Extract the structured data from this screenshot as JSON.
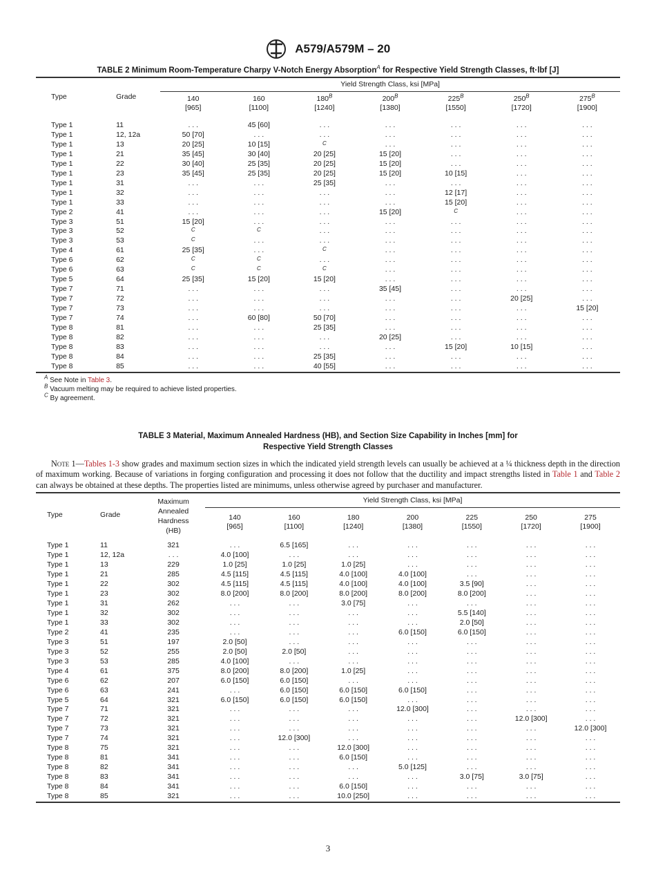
{
  "header": {
    "logo": "ASTM",
    "designation": "A579/A579M – 20"
  },
  "table2": {
    "title_pre": "TABLE 2 Minimum Room-Temperature Charpy V-Notch Energy Absorption",
    "title_fn": "A",
    "title_post": " for Respective Yield Strength Classes, ft·lbf [J]",
    "col_type": "Type",
    "col_grade": "Grade",
    "group": "Yield Strength Class, ksi [MPa]",
    "classes": [
      {
        "ksi": "140",
        "fn": "",
        "mpa": "[965]"
      },
      {
        "ksi": "160",
        "fn": "",
        "mpa": "[1100]"
      },
      {
        "ksi": "180",
        "fn": "B",
        "mpa": "[1240]"
      },
      {
        "ksi": "200",
        "fn": "B",
        "mpa": "[1380]"
      },
      {
        "ksi": "225",
        "fn": "B",
        "mpa": "[1550]"
      },
      {
        "ksi": "250",
        "fn": "B",
        "mpa": "[1720]"
      },
      {
        "ksi": "275",
        "fn": "B",
        "mpa": "[1900]"
      }
    ],
    "rows": [
      [
        "Type 1",
        "11",
        "...",
        "45 [60]",
        "...",
        "...",
        "...",
        "...",
        "..."
      ],
      [
        "Type 1",
        "12, 12a",
        "50 [70]",
        "...",
        "...",
        "...",
        "...",
        "...",
        "..."
      ],
      [
        "Type 1",
        "13",
        "20 [25]",
        "10 [15]",
        "C",
        "...",
        "...",
        "...",
        "..."
      ],
      [
        "Type 1",
        "21",
        "35 [45]",
        "30 [40]",
        "20 [25]",
        "15 [20]",
        "...",
        "...",
        "..."
      ],
      [
        "Type 1",
        "22",
        "30 [40]",
        "25 [35]",
        "20 [25]",
        "15 [20]",
        "...",
        "...",
        "..."
      ],
      [
        "Type 1",
        "23",
        "35 [45]",
        "25 [35]",
        "20 [25]",
        "15 [20]",
        "10 [15]",
        "...",
        "..."
      ],
      [
        "Type 1",
        "31",
        "...",
        "...",
        "25 [35]",
        "...",
        "...",
        "...",
        "..."
      ],
      [
        "Type 1",
        "32",
        "...",
        "...",
        "...",
        "...",
        "12 [17]",
        "...",
        "..."
      ],
      [
        "Type 1",
        "33",
        "...",
        "...",
        "...",
        "...",
        "15 [20]",
        "...",
        "..."
      ],
      [
        "Type 2",
        "41",
        "...",
        "...",
        "...",
        "15 [20]",
        "C",
        "...",
        "..."
      ],
      [
        "Type 3",
        "51",
        "15 [20]",
        "...",
        "...",
        "...",
        "...",
        "...",
        "..."
      ],
      [
        "Type 3",
        "52",
        "C",
        "C",
        "...",
        "...",
        "...",
        "...",
        "..."
      ],
      [
        "Type 3",
        "53",
        "C",
        "...",
        "...",
        "...",
        "...",
        "...",
        "..."
      ],
      [
        "Type 4",
        "61",
        "25 [35]",
        "...",
        "C",
        "...",
        "...",
        "...",
        "..."
      ],
      [
        "Type 6",
        "62",
        "C",
        "C",
        "...",
        "...",
        "...",
        "...",
        "..."
      ],
      [
        "Type 6",
        "63",
        "C",
        "C",
        "C",
        "...",
        "...",
        "...",
        "..."
      ],
      [
        "Type 5",
        "64",
        "25 [35]",
        "15 [20]",
        "15 [20]",
        "...",
        "...",
        "...",
        "..."
      ],
      [
        "Type 7",
        "71",
        "...",
        "...",
        "...",
        "35 [45]",
        "...",
        "...",
        "..."
      ],
      [
        "Type 7",
        "72",
        "...",
        "...",
        "...",
        "...",
        "...",
        "20 [25]",
        "..."
      ],
      [
        "Type 7",
        "73",
        "...",
        "...",
        "...",
        "...",
        "...",
        "...",
        "15 [20]"
      ],
      [
        "Type 7",
        "74",
        "...",
        "60 [80]",
        "50 [70]",
        "...",
        "...",
        "...",
        "..."
      ],
      [
        "Type 8",
        "81",
        "...",
        "...",
        "25 [35]",
        "...",
        "...",
        "...",
        "..."
      ],
      [
        "Type 8",
        "82",
        "...",
        "...",
        "...",
        "20 [25]",
        "...",
        "...",
        "..."
      ],
      [
        "Type 8",
        "83",
        "...",
        "...",
        "...",
        "...",
        "15 [20]",
        "10 [15]",
        "..."
      ],
      [
        "Type 8",
        "84",
        "...",
        "...",
        "25 [35]",
        "...",
        "...",
        "...",
        "..."
      ],
      [
        "Type 8",
        "85",
        "...",
        "...",
        "40 [55]",
        "...",
        "...",
        "...",
        "..."
      ]
    ],
    "footnotes": [
      {
        "mark": "A",
        "pre": " See Note in ",
        "link": "Table 3",
        "post": "."
      },
      {
        "mark": "B",
        "pre": " Vacuum melting may be required to achieve listed properties.",
        "link": "",
        "post": ""
      },
      {
        "mark": "C",
        "pre": " By agreement.",
        "link": "",
        "post": ""
      }
    ]
  },
  "table3": {
    "title_line1": "TABLE 3 Material, Maximum Annealed Hardness (HB), and Section Size Capability in Inches [mm] for",
    "title_line2": "Respective Yield Strength Classes",
    "note": {
      "label": "Note 1",
      "dash": "—",
      "link1": "Tables 1-3",
      "text1": " show grades and maximum section sizes in which the indicated yield strength levels can usually be achieved at a ¼ thickness depth in the direction of maximum working. Because of variations in forging configuration and processing it does not follow that the ductility and impact strengths listed in ",
      "link2": "Table 1",
      "text2": " and ",
      "link3": "Table 2",
      "text3": " can always be obtained at these depths. The properties listed are minimums, unless otherwise agreed by purchaser and manufacturer."
    },
    "col_type": "Type",
    "col_grade": "Grade",
    "col_hb": "Maximum Annealed Hardness (HB)",
    "group": "Yield Strength Class, ksi [MPa]",
    "classes": [
      {
        "ksi": "140",
        "mpa": "[965]"
      },
      {
        "ksi": "160",
        "mpa": "[1100]"
      },
      {
        "ksi": "180",
        "mpa": "[1240]"
      },
      {
        "ksi": "200",
        "mpa": "[1380]"
      },
      {
        "ksi": "225",
        "mpa": "[1550]"
      },
      {
        "ksi": "250",
        "mpa": "[1720]"
      },
      {
        "ksi": "275",
        "mpa": "[1900]"
      }
    ],
    "rows": [
      [
        "Type 1",
        "11",
        "321",
        "...",
        "6.5 [165]",
        "...",
        "...",
        "...",
        "...",
        "..."
      ],
      [
        "Type 1",
        "12, 12a",
        "...",
        "4.0 [100]",
        "...",
        "...",
        "...",
        "...",
        "...",
        "..."
      ],
      [
        "Type 1",
        "13",
        "229",
        "1.0 [25]",
        "1.0 [25]",
        "1.0 [25]",
        "...",
        "...",
        "...",
        "..."
      ],
      [
        "Type 1",
        "21",
        "285",
        "4.5 [115]",
        "4.5 [115]",
        "4.0 [100]",
        "4.0 [100]",
        "...",
        "...",
        "..."
      ],
      [
        "Type 1",
        "22",
        "302",
        "4.5 [115]",
        "4.5 [115]",
        "4.0 [100]",
        "4.0 [100]",
        "3.5 [90]",
        "...",
        "..."
      ],
      [
        "Type 1",
        "23",
        "302",
        "8.0 [200]",
        "8.0 [200]",
        "8.0 [200]",
        "8.0 [200]",
        "8.0 [200]",
        "...",
        "..."
      ],
      [
        "Type 1",
        "31",
        "262",
        "...",
        "...",
        "3.0 [75]",
        "...",
        "...",
        "...",
        "..."
      ],
      [
        "Type 1",
        "32",
        "302",
        "...",
        "...",
        "...",
        "...",
        "5.5 [140]",
        "...",
        "..."
      ],
      [
        "Type 1",
        "33",
        "302",
        "...",
        "...",
        "...",
        "...",
        "2.0 [50]",
        "...",
        "..."
      ],
      [
        "Type 2",
        "41",
        "235",
        "...",
        "...",
        "...",
        "6.0 [150]",
        "6.0 [150]",
        "...",
        "..."
      ],
      [
        "Type 3",
        "51",
        "197",
        "2.0 [50]",
        "...",
        "...",
        "...",
        "...",
        "...",
        "..."
      ],
      [
        "Type 3",
        "52",
        "255",
        "2.0 [50]",
        "2.0 [50]",
        "...",
        "...",
        "...",
        "...",
        "..."
      ],
      [
        "Type 3",
        "53",
        "285",
        "4.0 [100]",
        "...",
        "...",
        "...",
        "...",
        "...",
        "..."
      ],
      [
        "Type 4",
        "61",
        "375",
        "8.0 [200]",
        "8.0 [200]",
        "1.0 [25]",
        "...",
        "...",
        "...",
        "..."
      ],
      [
        "Type 6",
        "62",
        "207",
        "6.0 [150]",
        "6.0 [150]",
        "...",
        "...",
        "...",
        "...",
        "..."
      ],
      [
        "Type 6",
        "63",
        "241",
        "...",
        "6.0 [150]",
        "6.0 [150]",
        "6.0 [150]",
        "...",
        "...",
        "..."
      ],
      [
        "Type 5",
        "64",
        "321",
        "6.0 [150]",
        "6.0 [150]",
        "6.0 [150]",
        "...",
        "...",
        "...",
        "..."
      ],
      [
        "Type 7",
        "71",
        "321",
        "...",
        "...",
        "...",
        "12.0 [300]",
        "...",
        "...",
        "..."
      ],
      [
        "Type 7",
        "72",
        "321",
        "...",
        "...",
        "...",
        "...",
        "...",
        "12.0 [300]",
        "..."
      ],
      [
        "Type 7",
        "73",
        "321",
        "...",
        "...",
        "...",
        "...",
        "...",
        "...",
        "12.0 [300]"
      ],
      [
        "Type 7",
        "74",
        "321",
        "...",
        "12.0 [300]",
        "...",
        "...",
        "...",
        "...",
        "..."
      ],
      [
        "Type 8",
        "75",
        "321",
        "...",
        "...",
        "12.0 [300]",
        "...",
        "...",
        "...",
        "..."
      ],
      [
        "Type 8",
        "81",
        "341",
        "...",
        "...",
        "6.0 [150]",
        "...",
        "...",
        "...",
        "..."
      ],
      [
        "Type 8",
        "82",
        "341",
        "...",
        "...",
        "...",
        "5.0 [125]",
        "...",
        "...",
        "..."
      ],
      [
        "Type 8",
        "83",
        "341",
        "...",
        "...",
        "...",
        "...",
        "3.0 [75]",
        "3.0 [75]",
        "..."
      ],
      [
        "Type 8",
        "84",
        "341",
        "...",
        "...",
        "6.0 [150]",
        "...",
        "...",
        "...",
        "..."
      ],
      [
        "Type 8",
        "85",
        "321",
        "...",
        "...",
        "10.0 [250]",
        "...",
        "...",
        "...",
        "..."
      ]
    ]
  },
  "page_number": "3",
  "colors": {
    "link": "#b5272d",
    "text": "#1a1a1a"
  }
}
